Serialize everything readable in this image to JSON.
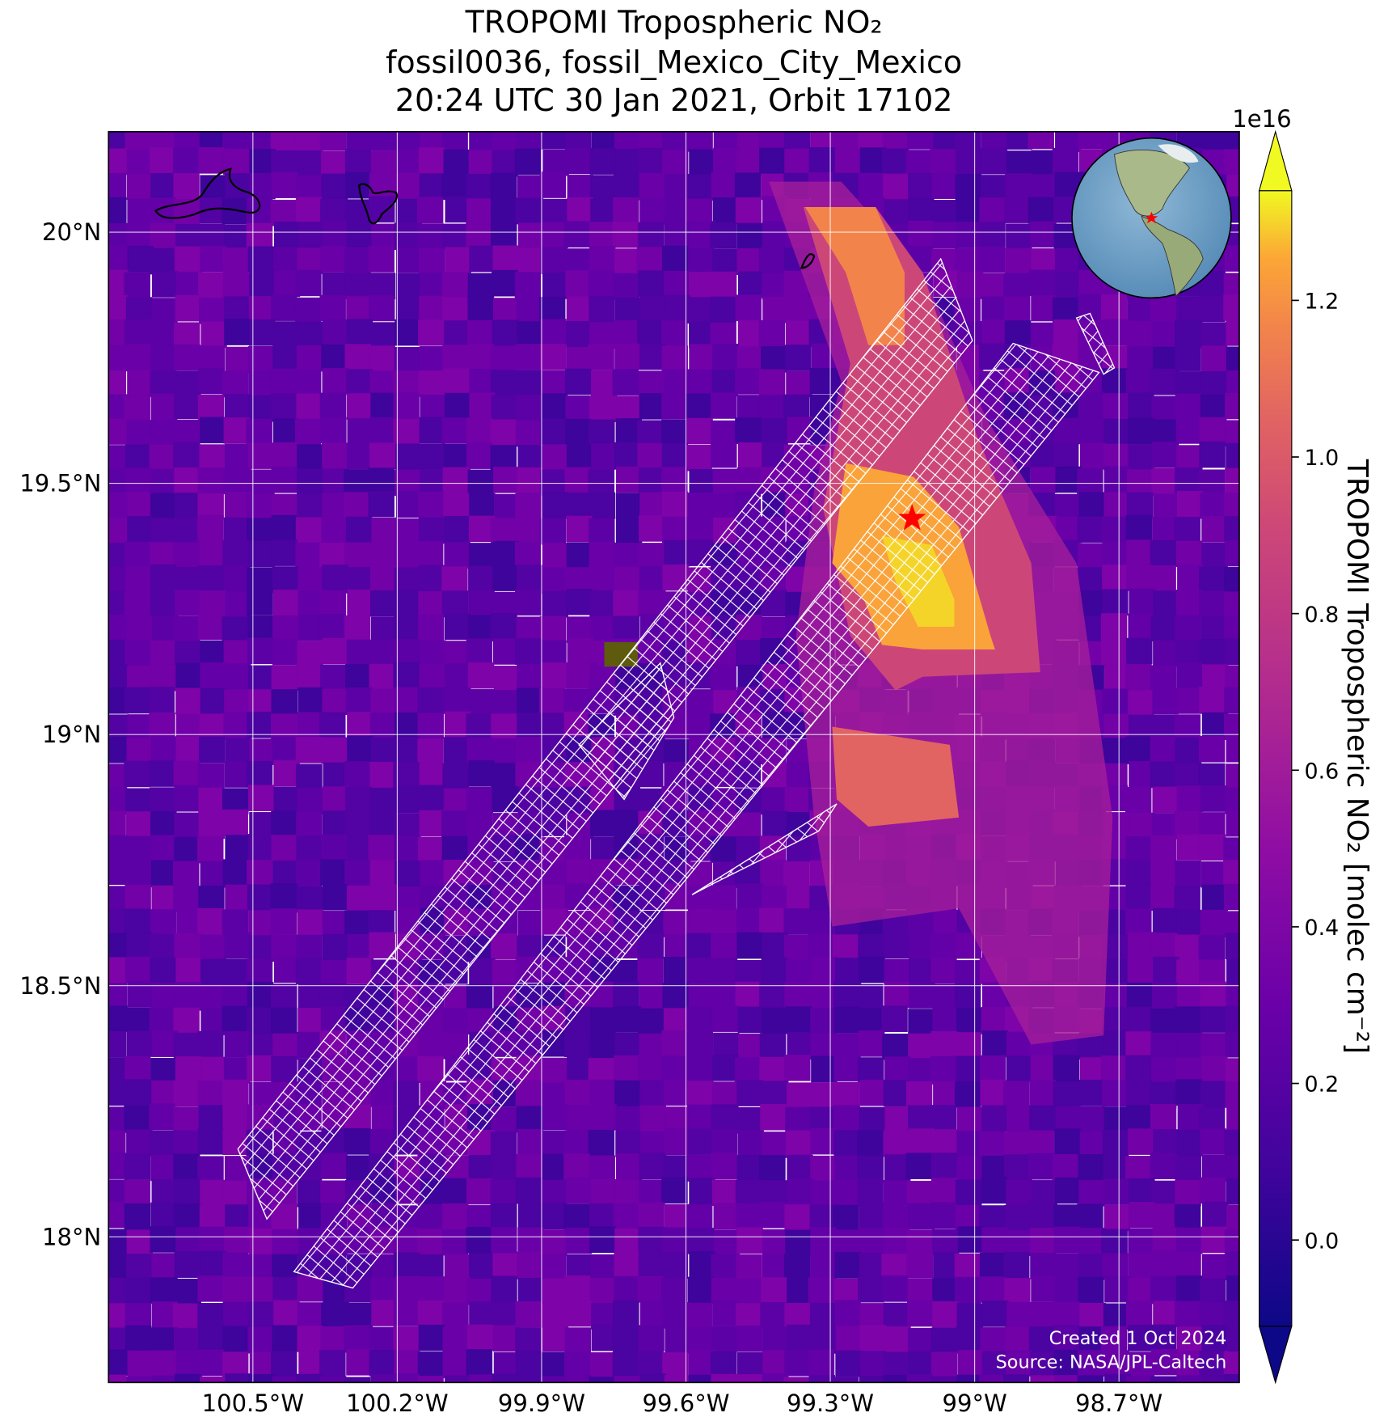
{
  "chart_data": {
    "type": "map",
    "title": [
      "TROPOMI Tropospheric NO₂",
      "fossil0036, fossil_Mexico_City_Mexico",
      "20:24 UTC 30 Jan 2021, Orbit 17102"
    ],
    "xlim": [
      -100.8,
      -98.45
    ],
    "ylim": [
      17.71,
      20.2
    ],
    "xticks": [
      {
        "value": -100.5,
        "label": "100.5°W"
      },
      {
        "value": -100.2,
        "label": "100.2°W"
      },
      {
        "value": -99.9,
        "label": "99.9°W"
      },
      {
        "value": -99.6,
        "label": "99.6°W"
      },
      {
        "value": -99.3,
        "label": "99.3°W"
      },
      {
        "value": -99.0,
        "label": "99°W"
      },
      {
        "value": -98.7,
        "label": "98.7°W"
      }
    ],
    "yticks": [
      {
        "value": 18.0,
        "label": "18°N"
      },
      {
        "value": 18.5,
        "label": "18.5°N"
      },
      {
        "value": 19.0,
        "label": "19°N"
      },
      {
        "value": 19.5,
        "label": "19.5°N"
      },
      {
        "value": 20.0,
        "label": "20°N"
      }
    ],
    "grid": true,
    "site": {
      "lon": -99.13,
      "lat": 19.43,
      "color": "#ff0000"
    },
    "colorbar": {
      "label": "TROPOMI Tropospheric NO₂ [molec cm⁻²]",
      "exponent": "1e16",
      "clim": [
        -0.11,
        1.34
      ],
      "ticks": [
        {
          "value": 0,
          "label": "0.0"
        },
        0.2,
        0.4,
        0.6,
        0.8,
        {
          "value": 1,
          "label": "1.0"
        },
        1.2
      ]
    },
    "footer": [
      "Created 1 Oct 2024",
      "Source: NASA/JPL-Caltech"
    ]
  }
}
